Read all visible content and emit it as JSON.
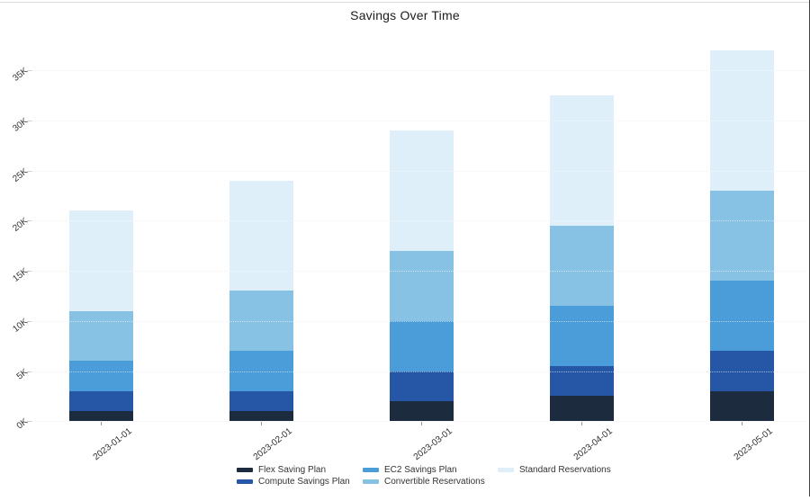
{
  "chart_data": {
    "type": "bar",
    "stacked": true,
    "title": "Savings Over Time",
    "xlabel": "",
    "ylabel": "",
    "unit": "K (thousands)",
    "categories": [
      "2023-01-01",
      "2023-02-01",
      "2023-03-01",
      "2023-04-01",
      "2023-05-01"
    ],
    "series": [
      {
        "name": "Flex Saving Plan",
        "color": "#1d2b3e",
        "values_k": [
          1,
          1,
          2,
          2.5,
          3
        ]
      },
      {
        "name": "Compute Savings Plan",
        "color": "#2657a6",
        "values_k": [
          2,
          2,
          3,
          3,
          4
        ]
      },
      {
        "name": "EC2 Savings Plan",
        "color": "#4a9dd9",
        "values_k": [
          3,
          4,
          5,
          6,
          7
        ]
      },
      {
        "name": "Convertible Reservations",
        "color": "#87c2e4",
        "values_k": [
          5,
          6,
          7,
          8,
          9
        ]
      },
      {
        "name": "Standard Reservations",
        "color": "#deeffa",
        "values_k": [
          10,
          11,
          12,
          13,
          14
        ]
      }
    ],
    "totals_k": [
      21,
      24,
      29,
      32.5,
      37
    ],
    "yticks": [
      "0K",
      "5K",
      "10K",
      "15K",
      "20K",
      "25K",
      "30K",
      "35K"
    ],
    "ylim_k": [
      0,
      39
    ],
    "grid": "dotted-horizontal",
    "legend_position": "bottom-center"
  }
}
